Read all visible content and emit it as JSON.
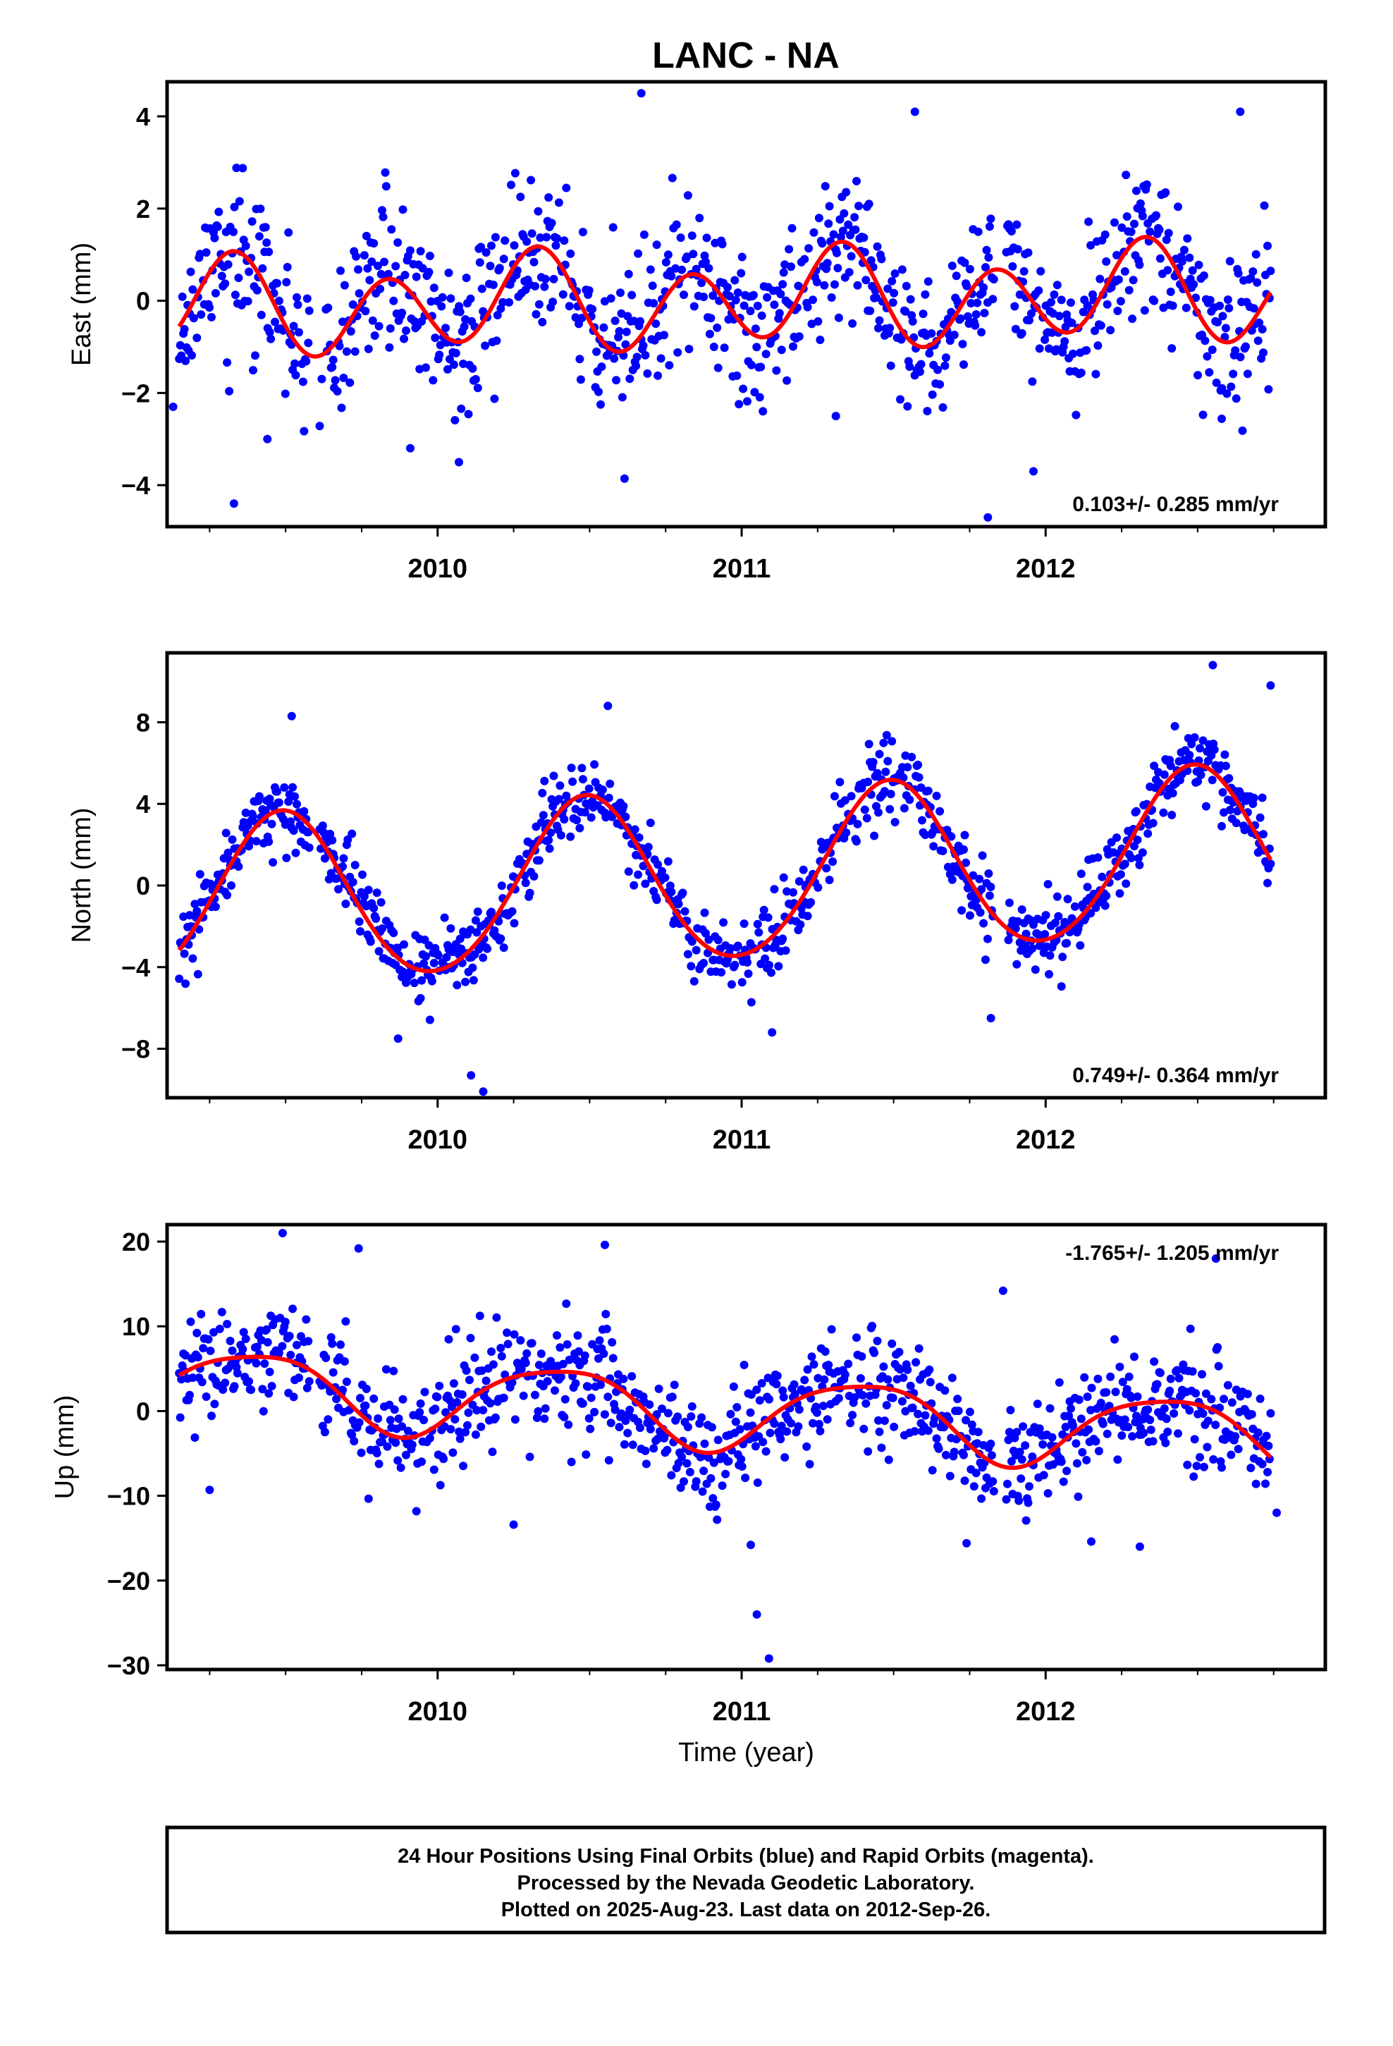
{
  "title": "LANC - NA",
  "colors": {
    "points": "#0000ff",
    "fit": "#ff0000",
    "frame": "#000000"
  },
  "footer": {
    "line1": "24 Hour Positions Using Final Orbits (blue) and Rapid Orbits (magenta).",
    "line2": "Processed by the Nevada Geodetic Laboratory.",
    "line3": "Plotted on 2025-Aug-23. Last data on 2012-Sep-26."
  },
  "chart_data": [
    {
      "type": "scatter",
      "name": "east",
      "ylabel": "East (mm)",
      "xlabel": "",
      "rate_text": "0.103+/- 0.285 mm/yr",
      "rate_position": "bottom-right",
      "xlim": [
        2009.11,
        2012.92
      ],
      "ylim": [
        -4.9,
        4.75
      ],
      "x_ticks": [
        2010,
        2011,
        2012
      ],
      "y_ticks": [
        -4,
        -2,
        0,
        2,
        4
      ],
      "y_tick_labels": [
        "−4",
        "−2",
        "0",
        "2",
        "4"
      ],
      "series": [
        {
          "kind": "points",
          "noise": 0.8,
          "seed": 11,
          "count": 1050,
          "start": 2009.15,
          "end": 2012.74,
          "gaps": [
            [
              2009.58,
              2009.61
            ],
            [
              2011.83,
              2011.87
            ]
          ]
        },
        {
          "kind": "fit",
          "mean": 0.0,
          "trend": 0.103,
          "t0": 2011.0,
          "a1_cos": -0.05,
          "a1_sin": 0.35,
          "a2_cos": -0.45,
          "a2_sin": -0.8
        }
      ],
      "outliers": [
        [
          2009.13,
          -2.3
        ],
        [
          2009.33,
          -4.4
        ],
        [
          2009.44,
          -3.0
        ],
        [
          2009.91,
          -3.2
        ],
        [
          2010.07,
          -3.5
        ],
        [
          2010.67,
          4.5
        ],
        [
          2011.31,
          -2.5
        ],
        [
          2011.57,
          4.1
        ],
        [
          2011.81,
          -4.7
        ],
        [
          2011.96,
          -3.7
        ],
        [
          2012.64,
          4.1
        ],
        [
          2012.58,
          -1.9
        ]
      ]
    },
    {
      "type": "scatter",
      "name": "north",
      "ylabel": "North (mm)",
      "xlabel": "",
      "rate_text": "0.749+/- 0.364 mm/yr",
      "rate_position": "bottom-right",
      "xlim": [
        2009.11,
        2012.92
      ],
      "ylim": [
        -10.4,
        11.4
      ],
      "x_ticks": [
        2010,
        2011,
        2012
      ],
      "y_ticks": [
        -8,
        -4,
        0,
        4,
        8
      ],
      "y_tick_labels": [
        "−8",
        "−4",
        "0",
        "4",
        "8"
      ],
      "series": [
        {
          "kind": "points",
          "noise": 0.9,
          "seed": 23,
          "count": 1050,
          "start": 2009.15,
          "end": 2012.74,
          "gaps": [
            [
              2009.58,
              2009.61
            ],
            [
              2011.83,
              2011.87
            ]
          ]
        },
        {
          "kind": "fit",
          "mean": 0.4,
          "trend": 0.749,
          "t0": 2011.0,
          "a1_cos": -4.1,
          "a1_sin": 0.4,
          "a2_cos": 0.3,
          "a2_sin": 0.0
        }
      ],
      "outliers": [
        [
          2009.87,
          -7.5
        ],
        [
          2010.11,
          -9.3
        ],
        [
          2010.15,
          -10.1
        ],
        [
          2010.56,
          8.8
        ],
        [
          2011.1,
          -7.2
        ],
        [
          2011.82,
          -6.5
        ],
        [
          2012.55,
          10.8
        ],
        [
          2012.74,
          9.8
        ],
        [
          2009.52,
          8.3
        ]
      ]
    },
    {
      "type": "scatter",
      "name": "up",
      "ylabel": "Up (mm)",
      "xlabel": "Time (year)",
      "rate_text": "-1.765+/- 1.205 mm/yr",
      "rate_position": "top-right",
      "xlim": [
        2009.11,
        2012.92
      ],
      "ylim": [
        -30.5,
        22
      ],
      "x_ticks": [
        2010,
        2011,
        2012
      ],
      "y_ticks": [
        -30,
        -20,
        -10,
        0,
        10,
        20
      ],
      "y_tick_labels": [
        "−30",
        "−20",
        "−10",
        "0",
        "10",
        "20"
      ],
      "series": [
        {
          "kind": "points",
          "noise": 3.3,
          "seed": 37,
          "count": 1050,
          "start": 2009.15,
          "end": 2012.74,
          "gaps": [
            [
              2009.58,
              2009.61
            ],
            [
              2011.83,
              2011.87
            ]
          ]
        },
        {
          "kind": "fit",
          "mean": 0.0,
          "trend": -1.765,
          "t0": 2011.0,
          "a1_cos": -3.4,
          "a1_sin": 2.7,
          "a2_cos": 0.0,
          "a2_sin": 0.8
        }
      ],
      "outliers": [
        [
          2009.49,
          21.0
        ],
        [
          2009.74,
          19.2
        ],
        [
          2010.55,
          19.6
        ],
        [
          2011.05,
          -24.0
        ],
        [
          2011.09,
          -29.2
        ],
        [
          2011.03,
          -15.8
        ],
        [
          2011.74,
          -15.6
        ],
        [
          2012.15,
          -15.4
        ],
        [
          2012.31,
          -16.0
        ],
        [
          2012.56,
          18.0
        ],
        [
          2012.76,
          -12.0
        ],
        [
          2009.25,
          -9.3
        ],
        [
          2010.25,
          -13.4
        ],
        [
          2011.86,
          14.2
        ]
      ]
    }
  ]
}
